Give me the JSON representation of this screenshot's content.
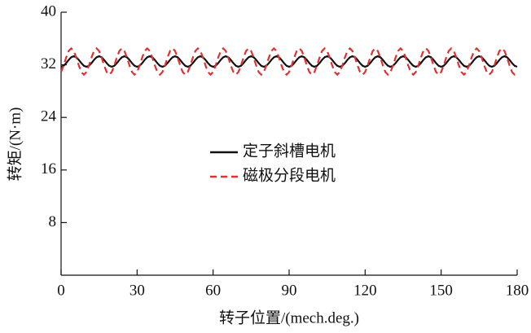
{
  "chart_data": {
    "type": "line",
    "xlabel": "转子位置/(mech.deg.)",
    "ylabel": "转矩/(N·m)",
    "xlim": [
      0,
      180
    ],
    "xticks": [
      0,
      30,
      60,
      90,
      120,
      150,
      180
    ],
    "ylim": [
      0,
      40
    ],
    "yticks": [
      8,
      16,
      24,
      32,
      40
    ],
    "legend": "center",
    "x": [
      0,
      1,
      2,
      3,
      4,
      5,
      6,
      7,
      8,
      9,
      10,
      11,
      12,
      13,
      14,
      15,
      16,
      17,
      18,
      19,
      20,
      21,
      22,
      23,
      24,
      25,
      26,
      27,
      28,
      29,
      30,
      31,
      32,
      33,
      34,
      35,
      36,
      37,
      38,
      39,
      40,
      41,
      42,
      43,
      44,
      45,
      46,
      47,
      48,
      49,
      50,
      51,
      52,
      53,
      54,
      55,
      56,
      57,
      58,
      59,
      60,
      61,
      62,
      63,
      64,
      65,
      66,
      67,
      68,
      69,
      70,
      71,
      72,
      73,
      74,
      75,
      76,
      77,
      78,
      79,
      80,
      81,
      82,
      83,
      84,
      85,
      86,
      87,
      88,
      89,
      90,
      91,
      92,
      93,
      94,
      95,
      96,
      97,
      98,
      99,
      100,
      101,
      102,
      103,
      104,
      105,
      106,
      107,
      108,
      109,
      110,
      111,
      112,
      113,
      114,
      115,
      116,
      117,
      118,
      119,
      120,
      121,
      122,
      123,
      124,
      125,
      126,
      127,
      128,
      129,
      130,
      131,
      132,
      133,
      134,
      135,
      136,
      137,
      138,
      139,
      140,
      141,
      142,
      143,
      144,
      145,
      146,
      147,
      148,
      149,
      150,
      151,
      152,
      153,
      154,
      155,
      156,
      157,
      158,
      159,
      160,
      161,
      162,
      163,
      164,
      165,
      166,
      167,
      168,
      169,
      170,
      171,
      172,
      173,
      174,
      175,
      176,
      177,
      178,
      179,
      180
    ],
    "series": [
      {
        "name": "定子斜槽电机",
        "color": "#111111",
        "dashed": false,
        "values": [
          31.7,
          31.85,
          32.25,
          32.75,
          33.15,
          33.3,
          33.15,
          32.75,
          32.25,
          31.85,
          31.7,
          31.85,
          32.25,
          32.75,
          33.15,
          33.3,
          33.15,
          32.75,
          32.25,
          31.85,
          31.7,
          31.85,
          32.25,
          32.75,
          33.15,
          33.3,
          33.15,
          32.75,
          32.25,
          31.85,
          31.7,
          31.85,
          32.25,
          32.75,
          33.15,
          33.3,
          33.15,
          32.75,
          32.25,
          31.85,
          31.7,
          31.85,
          32.25,
          32.75,
          33.15,
          33.3,
          33.15,
          32.75,
          32.25,
          31.85,
          31.7,
          31.85,
          32.25,
          32.75,
          33.15,
          33.3,
          33.15,
          32.75,
          32.25,
          31.85,
          31.7,
          31.85,
          32.25,
          32.75,
          33.15,
          33.3,
          33.15,
          32.75,
          32.25,
          31.85,
          31.7,
          31.85,
          32.25,
          32.75,
          33.15,
          33.3,
          33.15,
          32.75,
          32.25,
          31.85,
          31.7,
          31.85,
          32.25,
          32.75,
          33.15,
          33.3,
          33.15,
          32.75,
          32.25,
          31.85,
          31.7,
          31.85,
          32.25,
          32.75,
          33.15,
          33.3,
          33.15,
          32.75,
          32.25,
          31.85,
          31.7,
          31.85,
          32.25,
          32.75,
          33.15,
          33.3,
          33.15,
          32.75,
          32.25,
          31.85,
          31.7,
          31.85,
          32.25,
          32.75,
          33.15,
          33.3,
          33.15,
          32.75,
          32.25,
          31.85,
          31.7,
          31.85,
          32.25,
          32.75,
          33.15,
          33.3,
          33.15,
          32.75,
          32.25,
          31.85,
          31.7,
          31.85,
          32.25,
          32.75,
          33.15,
          33.3,
          33.15,
          32.75,
          32.25,
          31.85,
          31.7,
          31.85,
          32.25,
          32.75,
          33.15,
          33.3,
          33.15,
          32.75,
          32.25,
          31.85,
          31.7,
          31.85,
          32.25,
          32.75,
          33.15,
          33.3,
          33.15,
          32.75,
          32.25,
          31.85,
          31.7,
          31.85,
          32.25,
          32.75,
          33.15,
          33.3,
          33.15,
          32.75,
          32.25,
          31.85,
          31.7,
          31.85,
          32.25,
          32.75,
          33.15,
          33.3,
          33.15,
          32.75,
          32.25,
          31.85,
          31.7
        ]
      },
      {
        "name": "磁极分段电机",
        "color": "#e03030",
        "dashed": true,
        "values": [
          30.9,
          31.9,
          33.1,
          34.1,
          34.5,
          34.1,
          33.1,
          31.9,
          30.9,
          30.5,
          30.9,
          31.9,
          33.1,
          34.1,
          34.5,
          34.1,
          33.1,
          31.9,
          30.9,
          30.5,
          30.9,
          31.9,
          33.1,
          34.1,
          34.5,
          34.1,
          33.1,
          31.9,
          30.9,
          30.5,
          30.9,
          31.9,
          33.1,
          34.1,
          34.5,
          34.1,
          33.1,
          31.9,
          30.9,
          30.5,
          30.9,
          31.9,
          33.1,
          34.1,
          34.5,
          34.1,
          33.1,
          31.9,
          30.9,
          30.5,
          30.9,
          31.9,
          33.1,
          34.1,
          34.5,
          34.1,
          33.1,
          31.9,
          30.9,
          30.5,
          30.9,
          31.9,
          33.1,
          34.1,
          34.5,
          34.1,
          33.1,
          31.9,
          30.9,
          30.5,
          30.9,
          31.9,
          33.1,
          34.1,
          34.5,
          34.1,
          33.1,
          31.9,
          30.9,
          30.5,
          30.9,
          31.9,
          33.1,
          34.1,
          34.5,
          34.1,
          33.1,
          31.9,
          30.9,
          30.5,
          30.9,
          31.9,
          33.1,
          34.1,
          34.5,
          34.1,
          33.1,
          31.9,
          30.9,
          30.5,
          30.9,
          31.9,
          33.1,
          34.1,
          34.5,
          34.1,
          33.1,
          31.9,
          30.9,
          30.5,
          30.9,
          31.9,
          33.1,
          34.1,
          34.5,
          34.1,
          33.1,
          31.9,
          30.9,
          30.5,
          30.9,
          31.9,
          33.1,
          34.1,
          34.5,
          34.1,
          33.1,
          31.9,
          30.9,
          30.5,
          30.9,
          31.9,
          33.1,
          34.1,
          34.5,
          34.1,
          33.1,
          31.9,
          30.9,
          30.5,
          30.9,
          31.9,
          33.1,
          34.1,
          34.5,
          34.1,
          33.1,
          31.9,
          30.9,
          30.5,
          30.9,
          31.9,
          33.1,
          34.1,
          34.5,
          34.1,
          33.1,
          31.9,
          30.9,
          30.5,
          30.9,
          31.9,
          33.1,
          34.1,
          34.5,
          34.1,
          33.1,
          31.9,
          30.9,
          30.5,
          30.9,
          31.9,
          33.1,
          34.1,
          34.5,
          34.1,
          33.1,
          31.9,
          30.9,
          30.5,
          30.9
        ]
      }
    ]
  }
}
